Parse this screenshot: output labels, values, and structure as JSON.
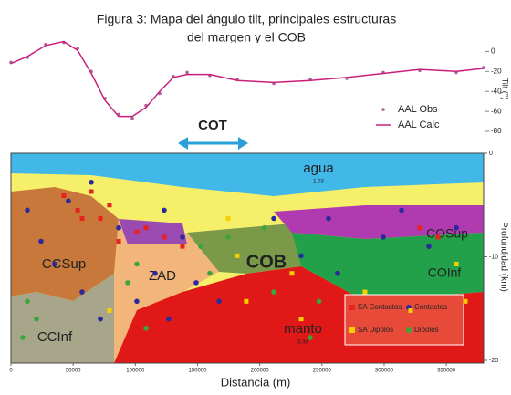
{
  "chart_data": [
    {
      "type": "line",
      "title": "Figura 3: Mapa del ángulo tilt, principales estructuras",
      "subtitle": "del margen y el COB",
      "y_label": "Tilt (°)",
      "x": [
        0,
        13200,
        27900,
        42500,
        53600,
        64600,
        75600,
        86600,
        97600,
        108600,
        119600,
        130600,
        141600,
        159900,
        181900,
        211300,
        240600,
        270000,
        299300,
        328600,
        358000,
        380000
      ],
      "xlim": [
        0,
        380000
      ],
      "ylim": [
        15,
        -90
      ],
      "yticks": [
        0,
        -20,
        -40,
        -60,
        -80
      ],
      "series": [
        {
          "name": "AAL Obs",
          "color": "#b0609a",
          "style": "markers",
          "values": [
            -11,
            -6,
            7,
            9,
            3,
            -20,
            -47,
            -63,
            -67,
            -54,
            -42,
            -25,
            -21,
            -24,
            -28,
            -32,
            -28,
            -27,
            -21,
            -19,
            -21,
            -16
          ]
        },
        {
          "name": "AAL Calc",
          "color": "#c8207a",
          "style": "line",
          "values": [
            -12,
            -5,
            6,
            10,
            1,
            -22,
            -49,
            -65,
            -65,
            -56,
            -40,
            -26,
            -23,
            -23,
            -29,
            -31,
            -29,
            -26,
            -22,
            -18,
            -20,
            -17
          ]
        }
      ]
    },
    {
      "type": "scatter",
      "x_label": "Distancia (m)",
      "y_label": "Profundidad (km)",
      "xlim": [
        0,
        380000
      ],
      "xticks": [
        0,
        50000,
        100000,
        150000,
        200000,
        250000,
        300000,
        350000
      ],
      "ylim": [
        0,
        -20
      ],
      "yticks": [
        0,
        -10,
        -20
      ],
      "annotations": [
        "COT",
        "agua",
        "1.03",
        "CCSup",
        "ZAD",
        "COB",
        "COSup",
        "COInf",
        "CCInf",
        "manto",
        "3.34"
      ],
      "series": [
        {
          "name": "SA Contactos",
          "color": "#e8231f",
          "marker": "square",
          "x": [
            42500,
            57200,
            64600,
            79200,
            101200,
            108600,
            123200,
            137900,
            86600,
            71900,
            328600,
            343300,
            53600
          ],
          "y": [
            -4.1,
            -6.3,
            -3.7,
            -5.0,
            -7.6,
            -7.2,
            -8.1,
            -9.0,
            -8.5,
            -6.3,
            -7.2,
            -8.1,
            -5.5
          ]
        },
        {
          "name": "Contactos",
          "color": "#2a2a9a",
          "marker": "circle",
          "x": [
            13200,
            24200,
            35200,
            46200,
            57200,
            71900,
            86600,
            101200,
            115900,
            126900,
            137900,
            148900,
            167300,
            211300,
            233300,
            255300,
            262600,
            299300,
            314000,
            336000,
            358000,
            123200,
            64600
          ],
          "y": [
            -5.5,
            -8.5,
            -10.7,
            -4.6,
            -13.4,
            -16.0,
            -7.2,
            -14.3,
            -11.6,
            -16.0,
            -8.1,
            -12.5,
            -14.3,
            -6.3,
            -9.9,
            -6.3,
            -11.6,
            -8.1,
            -5.5,
            -9.0,
            -7.2,
            -5.5,
            -2.8
          ]
        },
        {
          "name": "SA Dipolos",
          "color": "#f5d000",
          "marker": "square",
          "x": [
            174600,
            181900,
            225900,
            233300,
            284600,
            321300,
            358000,
            365300,
            79200,
            189200
          ],
          "y": [
            -6.3,
            -9.9,
            -11.6,
            -16.0,
            -13.4,
            -15.2,
            -10.7,
            -14.3,
            -15.2,
            -14.3
          ]
        },
        {
          "name": "Dipolos",
          "color": "#3aa63a",
          "marker": "circle",
          "x": [
            13200,
            20500,
            93900,
            101200,
            152600,
            159900,
            174600,
            203900,
            211300,
            240600,
            247600,
            9500,
            108600
          ],
          "y": [
            -14.3,
            -16.0,
            -12.5,
            -10.7,
            -9.0,
            -11.6,
            -8.1,
            -7.2,
            -13.4,
            -17.8,
            -14.3,
            -17.8,
            -16.9
          ]
        }
      ]
    }
  ]
}
